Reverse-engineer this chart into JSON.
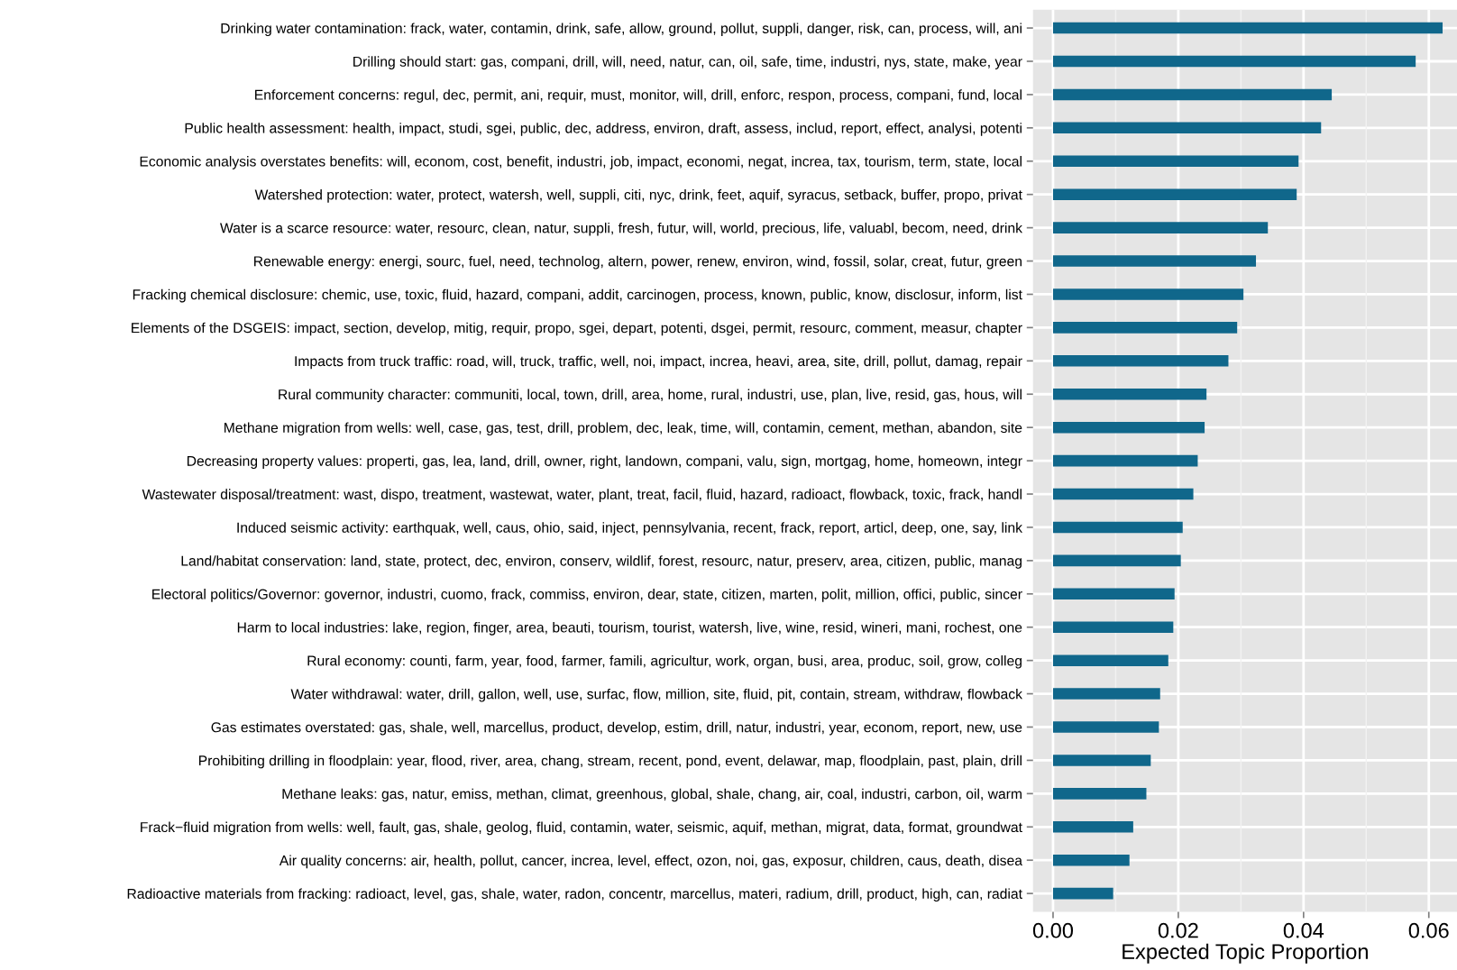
{
  "chart_data": {
    "type": "bar",
    "orientation": "horizontal",
    "xlabel": "Expected Topic Proportion",
    "categories": [
      "Drinking water contamination: frack, water, contamin, drink, safe, allow, ground, pollut, suppli, danger, risk, can, process, will, ani",
      "Drilling should start: gas, compani, drill, will, need, natur, can, oil, safe, time, industri, nys, state, make, year",
      "Enforcement concerns: regul, dec, permit, ani, requir, must, monitor, will, drill, enforc, respon, process, compani, fund, local",
      "Public health assessment: health, impact, studi, sgei, public, dec, address, environ, draft, assess, includ, report, effect, analysi, potenti",
      "Economic analysis overstates benefits: will, econom, cost, benefit, industri, job, impact, economi, negat, increa, tax, tourism, term, state, local",
      "Watershed protection: water, protect, watersh, well, suppli, citi, nyc, drink, feet, aquif, syracus, setback, buffer, propo, privat",
      "Water is a scarce resource: water, resourc, clean, natur, suppli, fresh, futur, will, world, precious, life, valuabl, becom, need, drink",
      "Renewable energy: energi, sourc, fuel, need, technolog, altern, power, renew, environ, wind, fossil, solar, creat, futur, green",
      "Fracking chemical disclosure: chemic, use, toxic, fluid, hazard, compani, addit, carcinogen, process, known, public, know, disclosur, inform, list",
      "Elements of the DSGEIS: impact, section, develop, mitig, requir, propo, sgei, depart, potenti, dsgei, permit, resourc, comment, measur, chapter",
      "Impacts from truck traffic: road, will, truck, traffic, well, noi, impact, increa, heavi, area, site, drill, pollut, damag, repair",
      "Rural community character: communiti, local, town, drill, area, home, rural, industri, use, plan, live, resid, gas, hous, will",
      "Methane migration from wells: well, case, gas, test, drill, problem, dec, leak, time, will, contamin, cement, methan, abandon, site",
      "Decreasing property values: properti, gas, lea, land, drill, owner, right, landown, compani, valu, sign, mortgag, home, homeown, integr",
      "Wastewater disposal/treatment: wast, dispo, treatment, wastewat, water, plant, treat, facil, fluid, hazard, radioact, flowback, toxic, frack, handl",
      "Induced seismic activity: earthquak, well, caus, ohio, said, inject, pennsylvania, recent, frack, report, articl, deep, one, say, link",
      "Land/habitat conservation: land, state, protect, dec, environ, conserv, wildlif, forest, resourc, natur, preserv, area, citizen, public, manag",
      "Electoral politics/Governor: governor, industri, cuomo, frack, commiss, environ, dear, state, citizen, marten, polit, million, offici, public, sincer",
      "Harm to local industries: lake, region, finger, area, beauti, tourism, tourist, watersh, live, wine, resid, wineri, mani, rochest, one",
      "Rural economy: counti, farm, year, food, farmer, famili, agricultur, work, organ, busi, area, produc, soil, grow, colleg",
      "Water withdrawal: water, drill, gallon, well, use, surfac, flow, million, site, fluid, pit, contain, stream, withdraw, flowback",
      "Gas estimates overstated: gas, shale, well, marcellus, product, develop, estim, drill, natur, industri, year, econom, report, new, use",
      "Prohibiting drilling in floodplain: year, flood, river, area, chang, stream, recent, pond, event, delawar, map, floodplain, past, plain, drill",
      "Methane leaks: gas, natur, emiss, methan, climat, greenhous, global, shale, chang, air, coal, industri, carbon, oil, warm",
      "Frack−fluid migration from wells: well, fault, gas, shale, geolog, fluid, contamin, water, seismic, aquif, methan, migrat, data, format, groundwat",
      "Air quality concerns: air, health, pollut, cancer, increa, level, effect, ozon, noi, gas, exposur, children, caus, death, disea",
      "Radioactive materials from fracking: radioact, level, gas, shale, water, radon, concentr, marcellus, materi, radium, drill, product, high, can, radiat"
    ],
    "values": [
      0.0622,
      0.0579,
      0.0445,
      0.0428,
      0.0392,
      0.0389,
      0.0343,
      0.0324,
      0.0304,
      0.0294,
      0.028,
      0.0245,
      0.0242,
      0.0231,
      0.0224,
      0.0207,
      0.0204,
      0.0194,
      0.0192,
      0.0184,
      0.0171,
      0.0169,
      0.0156,
      0.0149,
      0.0128,
      0.0122,
      0.0096
    ],
    "color": "#10678b",
    "xlim": [
      -0.0032,
      0.0645
    ],
    "xticks": [
      {
        "value": 0,
        "label": "0.00"
      },
      {
        "value": 0.02,
        "label": "0.02"
      },
      {
        "value": 0.04,
        "label": "0.04"
      },
      {
        "value": 0.06,
        "label": "0.06"
      }
    ],
    "grid": true
  }
}
